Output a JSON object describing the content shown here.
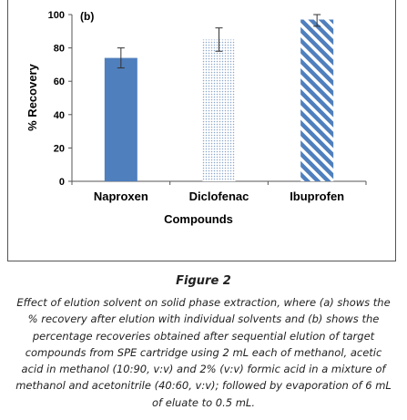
{
  "chart_data": {
    "type": "bar",
    "panel_label": "(b)",
    "categories": [
      "Naproxen",
      "Diclofenac",
      "Ibuprofen"
    ],
    "values": [
      74,
      85,
      97
    ],
    "errors": [
      6,
      7,
      4
    ],
    "xlabel": "Compounds",
    "ylabel": "% Recovery",
    "ylim": [
      0,
      100
    ],
    "yticks": [
      0,
      20,
      40,
      60,
      80,
      100
    ],
    "bar_styles": [
      {
        "fill": "#4f7fbd",
        "pattern": "solid"
      },
      {
        "fill": "#ffffff",
        "pattern": "dotted",
        "dot_color": "#8aa6c8"
      },
      {
        "fill": "#ffffff",
        "pattern": "diagonal-stripes",
        "stripe_color": "#4f7fbd"
      }
    ],
    "grid": false
  },
  "figure": {
    "title": "Figure 2",
    "caption": "Effect of elution solvent on solid phase extraction, where (a) shows the % recovery after elution with individual solvents and (b) shows the percentage recoveries obtained after sequential elution of target compounds from SPE cartridge using 2 mL each of methanol, acetic acid in methanol (10:90, v:v) and 2% (v:v) formic acid in a mixture of methanol and acetonitrile (40:60, v:v); followed by evaporation of 6 mL of eluate to 0.5 mL."
  }
}
